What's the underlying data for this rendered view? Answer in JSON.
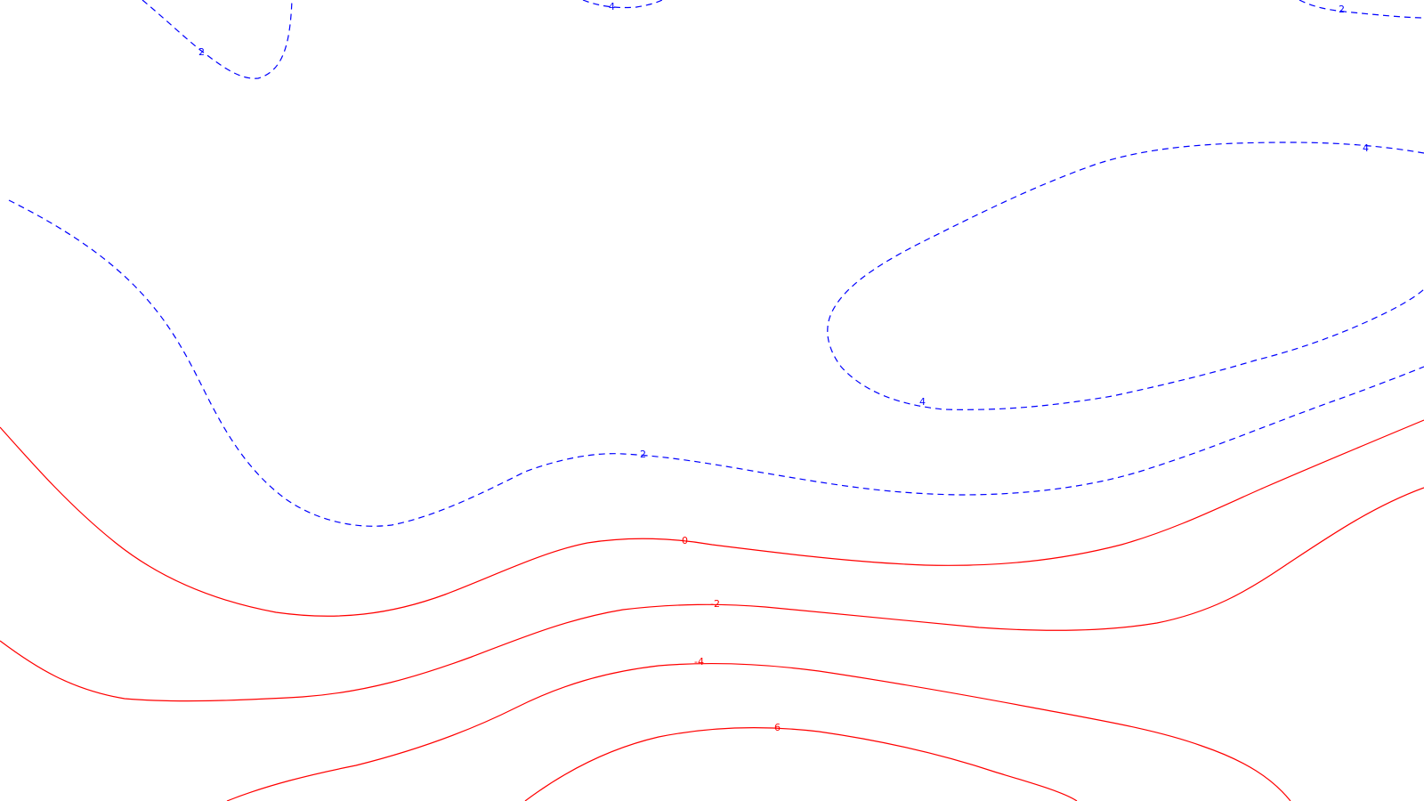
{
  "colors": {
    "background": "#ffffff",
    "positive": "#0000ff",
    "negative": "#ff0000"
  },
  "contours": [
    {
      "level": "2",
      "sign": "pos",
      "label": "2"
    },
    {
      "level": "4",
      "sign": "pos",
      "label": "4"
    },
    {
      "level": "2",
      "sign": "pos",
      "label": "2"
    },
    {
      "level": "4",
      "sign": "pos",
      "label": "4"
    },
    {
      "level": "4",
      "sign": "pos",
      "label": "4"
    },
    {
      "level": "2",
      "sign": "pos",
      "label": "2"
    },
    {
      "level": "0",
      "sign": "neg",
      "label": "0"
    },
    {
      "level": "-2",
      "sign": "neg",
      "label": "-2"
    },
    {
      "level": "-4",
      "sign": "neg",
      "label": "-4"
    },
    {
      "level": "-6",
      "sign": "neg",
      "label": "-6"
    }
  ]
}
